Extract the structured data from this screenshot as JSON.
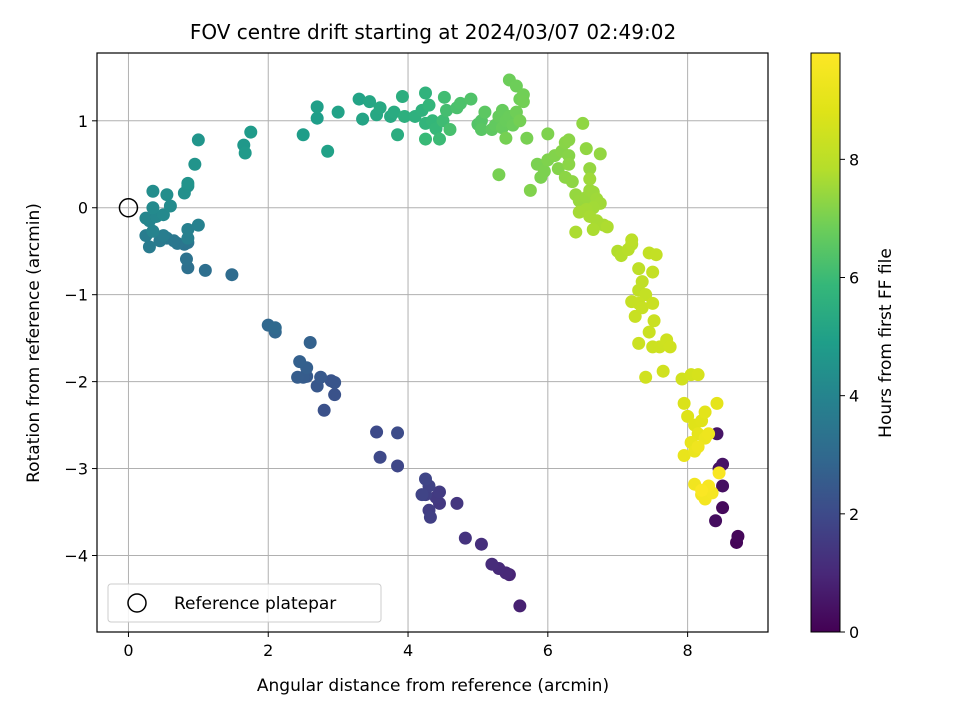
{
  "chart_data": {
    "type": "scatter",
    "title": "FOV centre drift starting at 2024/03/07 02:49:02",
    "xlabel": "Angular distance from reference (arcmin)",
    "ylabel": "Rotation from reference (arcmin)",
    "xlim": [
      -0.45,
      9.15
    ],
    "ylim": [
      -4.88,
      1.78
    ],
    "xticks": [
      0,
      2,
      4,
      6,
      8
    ],
    "yticks": [
      -4,
      -3,
      -2,
      -1,
      0,
      1
    ],
    "xtick_labels": [
      "0",
      "2",
      "4",
      "6",
      "8"
    ],
    "ytick_labels": [
      "−4",
      "−3",
      "−2",
      "−1",
      "0",
      "1"
    ],
    "grid": true,
    "colormap": "viridis",
    "colorbar": {
      "label": "Hours from first FF file",
      "range": [
        0,
        9.8
      ],
      "ticks": [
        0,
        2,
        4,
        6,
        8
      ],
      "tick_labels": [
        "0",
        "2",
        "4",
        "6",
        "8"
      ]
    },
    "legend": {
      "position": "lower-left",
      "entries": [
        "Reference platepar"
      ]
    },
    "reference_point": {
      "x": 0,
      "y": 0,
      "marker": "open-circle",
      "label": "Reference platepar"
    },
    "points": [
      {
        "x": 8.7,
        "y": -3.85,
        "t": 0.1
      },
      {
        "x": 8.72,
        "y": -3.78,
        "t": 0.15
      },
      {
        "x": 8.5,
        "y": -3.45,
        "t": 0.2
      },
      {
        "x": 8.4,
        "y": -3.6,
        "t": 0.3
      },
      {
        "x": 8.5,
        "y": -3.2,
        "t": 0.35
      },
      {
        "x": 8.45,
        "y": -3.0,
        "t": 0.4
      },
      {
        "x": 8.5,
        "y": -2.95,
        "t": 0.45
      },
      {
        "x": 8.42,
        "y": -2.6,
        "t": 0.5
      },
      {
        "x": 5.6,
        "y": -4.58,
        "t": 0.8
      },
      {
        "x": 5.45,
        "y": -4.22,
        "t": 0.9
      },
      {
        "x": 5.4,
        "y": -4.2,
        "t": 1.0
      },
      {
        "x": 5.3,
        "y": -4.15,
        "t": 1.05
      },
      {
        "x": 5.2,
        "y": -4.1,
        "t": 1.1
      },
      {
        "x": 5.05,
        "y": -3.87,
        "t": 1.2
      },
      {
        "x": 4.82,
        "y": -3.8,
        "t": 1.3
      },
      {
        "x": 4.7,
        "y": -3.4,
        "t": 1.4
      },
      {
        "x": 4.45,
        "y": -3.4,
        "t": 1.45
      },
      {
        "x": 4.4,
        "y": -3.33,
        "t": 1.5
      },
      {
        "x": 4.45,
        "y": -3.27,
        "t": 1.55
      },
      {
        "x": 4.3,
        "y": -3.48,
        "t": 1.6
      },
      {
        "x": 4.32,
        "y": -3.56,
        "t": 1.65
      },
      {
        "x": 4.25,
        "y": -3.3,
        "t": 1.7
      },
      {
        "x": 4.3,
        "y": -3.2,
        "t": 1.75
      },
      {
        "x": 4.2,
        "y": -3.3,
        "t": 1.8
      },
      {
        "x": 4.25,
        "y": -3.12,
        "t": 1.85
      },
      {
        "x": 3.85,
        "y": -2.97,
        "t": 1.9
      },
      {
        "x": 3.6,
        "y": -2.87,
        "t": 1.95
      },
      {
        "x": 3.55,
        "y": -2.58,
        "t": 2.0
      },
      {
        "x": 3.85,
        "y": -2.59,
        "t": 2.05
      },
      {
        "x": 2.8,
        "y": -2.33,
        "t": 2.2
      },
      {
        "x": 2.95,
        "y": -2.15,
        "t": 2.25
      },
      {
        "x": 2.9,
        "y": -1.99,
        "t": 2.3
      },
      {
        "x": 2.95,
        "y": -2.01,
        "t": 2.35
      },
      {
        "x": 2.7,
        "y": -2.05,
        "t": 2.4
      },
      {
        "x": 2.75,
        "y": -1.95,
        "t": 2.45
      },
      {
        "x": 2.55,
        "y": -1.94,
        "t": 2.5
      },
      {
        "x": 2.5,
        "y": -1.95,
        "t": 2.55
      },
      {
        "x": 2.42,
        "y": -1.95,
        "t": 2.6
      },
      {
        "x": 2.55,
        "y": -1.84,
        "t": 2.65
      },
      {
        "x": 2.45,
        "y": -1.77,
        "t": 2.7
      },
      {
        "x": 2.6,
        "y": -1.55,
        "t": 2.75
      },
      {
        "x": 2.1,
        "y": -1.43,
        "t": 2.9
      },
      {
        "x": 2.0,
        "y": -1.35,
        "t": 2.95
      },
      {
        "x": 2.1,
        "y": -1.38,
        "t": 3.0
      },
      {
        "x": 1.48,
        "y": -0.77,
        "t": 3.1
      },
      {
        "x": 1.1,
        "y": -0.72,
        "t": 3.2
      },
      {
        "x": 0.85,
        "y": -0.69,
        "t": 3.25
      },
      {
        "x": 0.83,
        "y": -0.59,
        "t": 3.3
      },
      {
        "x": 0.8,
        "y": -0.42,
        "t": 3.35
      },
      {
        "x": 0.85,
        "y": -0.4,
        "t": 3.4
      },
      {
        "x": 0.7,
        "y": -0.41,
        "t": 3.45
      },
      {
        "x": 0.65,
        "y": -0.38,
        "t": 3.5
      },
      {
        "x": 0.55,
        "y": -0.35,
        "t": 3.55
      },
      {
        "x": 0.45,
        "y": -0.38,
        "t": 3.6
      },
      {
        "x": 0.3,
        "y": -0.45,
        "t": 3.65
      },
      {
        "x": 0.25,
        "y": -0.32,
        "t": 3.7
      },
      {
        "x": 0.5,
        "y": -0.32,
        "t": 3.75
      },
      {
        "x": 0.85,
        "y": -0.35,
        "t": 3.8
      },
      {
        "x": 0.85,
        "y": -0.25,
        "t": 3.85
      },
      {
        "x": 1.0,
        "y": -0.2,
        "t": 3.9
      },
      {
        "x": 0.35,
        "y": -0.27,
        "t": 3.95
      },
      {
        "x": 0.3,
        "y": -0.15,
        "t": 4.0
      },
      {
        "x": 0.25,
        "y": -0.12,
        "t": 4.05
      },
      {
        "x": 0.4,
        "y": -0.1,
        "t": 4.1
      },
      {
        "x": 0.5,
        "y": -0.08,
        "t": 4.15
      },
      {
        "x": 0.35,
        "y": 0.0,
        "t": 4.2
      },
      {
        "x": 0.6,
        "y": 0.02,
        "t": 4.25
      },
      {
        "x": 0.35,
        "y": 0.19,
        "t": 4.3
      },
      {
        "x": 0.55,
        "y": 0.15,
        "t": 4.35
      },
      {
        "x": 0.8,
        "y": 0.17,
        "t": 4.4
      },
      {
        "x": 0.85,
        "y": 0.25,
        "t": 4.45
      },
      {
        "x": 0.85,
        "y": 0.28,
        "t": 4.5
      },
      {
        "x": 0.95,
        "y": 0.5,
        "t": 4.55
      },
      {
        "x": 1.0,
        "y": 0.78,
        "t": 4.6
      },
      {
        "x": 1.65,
        "y": 0.72,
        "t": 4.7
      },
      {
        "x": 1.67,
        "y": 0.63,
        "t": 4.75
      },
      {
        "x": 1.75,
        "y": 0.87,
        "t": 4.8
      },
      {
        "x": 2.5,
        "y": 0.84,
        "t": 4.85
      },
      {
        "x": 2.7,
        "y": 1.03,
        "t": 4.9
      },
      {
        "x": 2.7,
        "y": 1.16,
        "t": 4.95
      },
      {
        "x": 2.85,
        "y": 0.65,
        "t": 5.0
      },
      {
        "x": 3.0,
        "y": 1.1,
        "t": 5.05
      },
      {
        "x": 3.3,
        "y": 1.25,
        "t": 5.1
      },
      {
        "x": 3.35,
        "y": 1.02,
        "t": 5.15
      },
      {
        "x": 3.45,
        "y": 1.22,
        "t": 5.2
      },
      {
        "x": 3.55,
        "y": 1.07,
        "t": 5.25
      },
      {
        "x": 3.6,
        "y": 1.15,
        "t": 5.3
      },
      {
        "x": 3.75,
        "y": 1.05,
        "t": 5.35
      },
      {
        "x": 3.8,
        "y": 1.1,
        "t": 5.4
      },
      {
        "x": 3.85,
        "y": 0.84,
        "t": 5.45
      },
      {
        "x": 3.92,
        "y": 1.28,
        "t": 5.5
      },
      {
        "x": 3.95,
        "y": 1.05,
        "t": 5.55
      },
      {
        "x": 4.1,
        "y": 1.05,
        "t": 5.6
      },
      {
        "x": 4.2,
        "y": 1.12,
        "t": 5.65
      },
      {
        "x": 4.25,
        "y": 1.32,
        "t": 5.7
      },
      {
        "x": 4.25,
        "y": 0.97,
        "t": 5.75
      },
      {
        "x": 4.3,
        "y": 1.18,
        "t": 5.8
      },
      {
        "x": 4.35,
        "y": 1.0,
        "t": 5.85
      },
      {
        "x": 4.4,
        "y": 0.91,
        "t": 5.9
      },
      {
        "x": 4.25,
        "y": 0.79,
        "t": 5.95
      },
      {
        "x": 4.45,
        "y": 0.79,
        "t": 6.0
      },
      {
        "x": 4.5,
        "y": 1.0,
        "t": 6.05
      },
      {
        "x": 4.52,
        "y": 1.27,
        "t": 6.1
      },
      {
        "x": 4.55,
        "y": 1.12,
        "t": 6.15
      },
      {
        "x": 4.6,
        "y": 0.9,
        "t": 6.2
      },
      {
        "x": 4.7,
        "y": 1.15,
        "t": 6.25
      },
      {
        "x": 4.75,
        "y": 1.2,
        "t": 6.3
      },
      {
        "x": 4.9,
        "y": 1.25,
        "t": 6.35
      },
      {
        "x": 5.0,
        "y": 0.96,
        "t": 6.4
      },
      {
        "x": 5.05,
        "y": 1.0,
        "t": 6.45
      },
      {
        "x": 5.05,
        "y": 0.9,
        "t": 6.5
      },
      {
        "x": 5.1,
        "y": 1.1,
        "t": 6.55
      },
      {
        "x": 5.2,
        "y": 0.9,
        "t": 6.6
      },
      {
        "x": 5.25,
        "y": 0.95,
        "t": 6.65
      },
      {
        "x": 5.3,
        "y": 1.05,
        "t": 6.7
      },
      {
        "x": 5.35,
        "y": 1.12,
        "t": 6.72
      },
      {
        "x": 5.35,
        "y": 0.92,
        "t": 6.74
      },
      {
        "x": 5.4,
        "y": 1.0,
        "t": 6.76
      },
      {
        "x": 5.45,
        "y": 1.05,
        "t": 6.78
      },
      {
        "x": 5.5,
        "y": 0.95,
        "t": 6.8
      },
      {
        "x": 5.45,
        "y": 1.47,
        "t": 6.82
      },
      {
        "x": 5.55,
        "y": 1.4,
        "t": 6.84
      },
      {
        "x": 5.6,
        "y": 1.25,
        "t": 6.86
      },
      {
        "x": 5.55,
        "y": 1.1,
        "t": 6.88
      },
      {
        "x": 5.65,
        "y": 1.3,
        "t": 6.9
      },
      {
        "x": 5.65,
        "y": 1.22,
        "t": 6.92
      },
      {
        "x": 5.6,
        "y": 1.0,
        "t": 6.94
      },
      {
        "x": 5.4,
        "y": 0.8,
        "t": 6.96
      },
      {
        "x": 5.3,
        "y": 0.38,
        "t": 6.98
      },
      {
        "x": 5.7,
        "y": 0.8,
        "t": 7.0
      },
      {
        "x": 5.85,
        "y": 0.5,
        "t": 7.02
      },
      {
        "x": 5.9,
        "y": 0.35,
        "t": 7.04
      },
      {
        "x": 5.95,
        "y": 0.42,
        "t": 7.06
      },
      {
        "x": 6.0,
        "y": 0.85,
        "t": 7.08
      },
      {
        "x": 6.0,
        "y": 0.55,
        "t": 7.1
      },
      {
        "x": 5.75,
        "y": 0.2,
        "t": 7.12
      },
      {
        "x": 6.1,
        "y": 0.6,
        "t": 7.14
      },
      {
        "x": 6.15,
        "y": 0.45,
        "t": 7.16
      },
      {
        "x": 6.2,
        "y": 0.65,
        "t": 7.18
      },
      {
        "x": 6.3,
        "y": 0.6,
        "t": 7.2
      },
      {
        "x": 6.25,
        "y": 0.75,
        "t": 7.22
      },
      {
        "x": 6.3,
        "y": 0.78,
        "t": 7.24
      },
      {
        "x": 6.3,
        "y": 0.5,
        "t": 7.26
      },
      {
        "x": 6.25,
        "y": 0.35,
        "t": 7.28
      },
      {
        "x": 6.35,
        "y": 0.3,
        "t": 7.3
      },
      {
        "x": 6.5,
        "y": 0.97,
        "t": 7.32
      },
      {
        "x": 6.55,
        "y": 0.68,
        "t": 7.34
      },
      {
        "x": 6.75,
        "y": 0.62,
        "t": 7.36
      },
      {
        "x": 6.6,
        "y": 0.45,
        "t": 7.38
      },
      {
        "x": 6.4,
        "y": 0.15,
        "t": 7.4
      },
      {
        "x": 6.45,
        "y": 0.08,
        "t": 7.42
      },
      {
        "x": 6.5,
        "y": 0.05,
        "t": 7.44
      },
      {
        "x": 6.55,
        "y": 0.12,
        "t": 7.46
      },
      {
        "x": 6.6,
        "y": 0.2,
        "t": 7.48
      },
      {
        "x": 6.65,
        "y": 0.18,
        "t": 7.5
      },
      {
        "x": 6.6,
        "y": 0.33,
        "t": 7.52
      },
      {
        "x": 6.7,
        "y": 0.1,
        "t": 7.54
      },
      {
        "x": 6.75,
        "y": 0.05,
        "t": 7.56
      },
      {
        "x": 6.65,
        "y": 0.0,
        "t": 7.58
      },
      {
        "x": 6.55,
        "y": -0.02,
        "t": 7.6
      },
      {
        "x": 6.45,
        "y": -0.05,
        "t": 7.62
      },
      {
        "x": 6.6,
        "y": -0.1,
        "t": 7.64
      },
      {
        "x": 6.7,
        "y": -0.15,
        "t": 7.66
      },
      {
        "x": 6.8,
        "y": -0.2,
        "t": 7.68
      },
      {
        "x": 6.65,
        "y": -0.25,
        "t": 7.7
      },
      {
        "x": 6.4,
        "y": -0.28,
        "t": 7.72
      },
      {
        "x": 6.85,
        "y": -0.22,
        "t": 7.74
      },
      {
        "x": 7.0,
        "y": -0.5,
        "t": 7.8
      },
      {
        "x": 7.05,
        "y": -0.55,
        "t": 7.85
      },
      {
        "x": 7.15,
        "y": -0.48,
        "t": 7.9
      },
      {
        "x": 7.2,
        "y": -0.42,
        "t": 7.95
      },
      {
        "x": 7.2,
        "y": -0.37,
        "t": 8.0
      },
      {
        "x": 7.3,
        "y": -0.7,
        "t": 8.05
      },
      {
        "x": 7.3,
        "y": -0.95,
        "t": 8.1
      },
      {
        "x": 7.35,
        "y": -0.85,
        "t": 8.12
      },
      {
        "x": 7.45,
        "y": -0.52,
        "t": 8.14
      },
      {
        "x": 7.55,
        "y": -0.54,
        "t": 8.16
      },
      {
        "x": 7.5,
        "y": -0.74,
        "t": 8.18
      },
      {
        "x": 7.4,
        "y": -1.0,
        "t": 8.2
      },
      {
        "x": 7.2,
        "y": -1.08,
        "t": 8.22
      },
      {
        "x": 7.3,
        "y": -1.1,
        "t": 8.24
      },
      {
        "x": 7.35,
        "y": -1.15,
        "t": 8.26
      },
      {
        "x": 7.25,
        "y": -1.25,
        "t": 8.28
      },
      {
        "x": 7.5,
        "y": -1.1,
        "t": 8.3
      },
      {
        "x": 7.52,
        "y": -1.3,
        "t": 8.32
      },
      {
        "x": 7.45,
        "y": -1.43,
        "t": 8.34
      },
      {
        "x": 7.3,
        "y": -1.56,
        "t": 8.36
      },
      {
        "x": 7.5,
        "y": -1.6,
        "t": 8.38
      },
      {
        "x": 7.6,
        "y": -1.6,
        "t": 8.4
      },
      {
        "x": 7.7,
        "y": -1.52,
        "t": 8.42
      },
      {
        "x": 7.75,
        "y": -1.6,
        "t": 8.44
      },
      {
        "x": 7.65,
        "y": -1.88,
        "t": 8.46
      },
      {
        "x": 7.4,
        "y": -1.95,
        "t": 8.48
      },
      {
        "x": 7.92,
        "y": -1.97,
        "t": 8.5
      },
      {
        "x": 8.05,
        "y": -1.92,
        "t": 8.55
      },
      {
        "x": 8.15,
        "y": -1.92,
        "t": 8.6
      },
      {
        "x": 7.95,
        "y": -2.25,
        "t": 8.7
      },
      {
        "x": 8.0,
        "y": -2.4,
        "t": 8.8
      },
      {
        "x": 8.1,
        "y": -2.5,
        "t": 8.85
      },
      {
        "x": 8.2,
        "y": -2.45,
        "t": 8.9
      },
      {
        "x": 8.25,
        "y": -2.35,
        "t": 8.95
      },
      {
        "x": 8.42,
        "y": -2.25,
        "t": 9.0
      },
      {
        "x": 8.15,
        "y": -2.6,
        "t": 9.05
      },
      {
        "x": 8.05,
        "y": -2.7,
        "t": 9.1
      },
      {
        "x": 7.95,
        "y": -2.85,
        "t": 9.15
      },
      {
        "x": 8.1,
        "y": -2.8,
        "t": 9.2
      },
      {
        "x": 8.25,
        "y": -2.65,
        "t": 9.25
      },
      {
        "x": 8.3,
        "y": -2.6,
        "t": 9.3
      },
      {
        "x": 8.15,
        "y": -2.75,
        "t": 9.35
      },
      {
        "x": 8.1,
        "y": -3.18,
        "t": 9.4
      },
      {
        "x": 8.2,
        "y": -3.3,
        "t": 9.45
      },
      {
        "x": 8.25,
        "y": -3.35,
        "t": 9.5
      },
      {
        "x": 8.35,
        "y": -3.28,
        "t": 9.55
      },
      {
        "x": 8.3,
        "y": -3.2,
        "t": 9.6
      },
      {
        "x": 8.45,
        "y": -3.05,
        "t": 9.65
      },
      {
        "x": 8.2,
        "y": -3.25,
        "t": 9.7
      }
    ]
  }
}
